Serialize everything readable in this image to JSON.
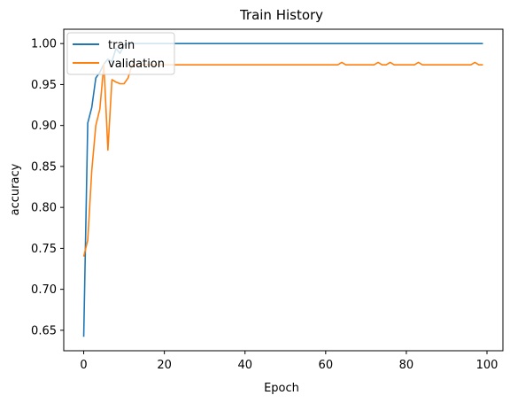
{
  "chart_data": {
    "type": "line",
    "title": "Train History",
    "xlabel": "Epoch",
    "ylabel": "accuracy",
    "xlim": [
      -4.95,
      103.95
    ],
    "ylim": [
      0.625,
      1.0175
    ],
    "xticks": [
      0,
      20,
      40,
      60,
      80,
      100
    ],
    "yticks": [
      0.65,
      0.7,
      0.75,
      0.8,
      0.85,
      0.9,
      0.95,
      1.0
    ],
    "xtick_labels": [
      "0",
      "20",
      "40",
      "60",
      "80",
      "100"
    ],
    "ytick_labels": [
      "0.65",
      "0.70",
      "0.75",
      "0.80",
      "0.85",
      "0.90",
      "0.95",
      "1.00"
    ],
    "grid": false,
    "legend_position": "upper-left",
    "series": [
      {
        "name": "train",
        "color": "#1f77b4",
        "points": [
          [
            0,
            0.642
          ],
          [
            1,
            0.903
          ],
          [
            2,
            0.922
          ],
          [
            3,
            0.958
          ],
          [
            4,
            0.965
          ],
          [
            5,
            0.975
          ],
          [
            6,
            0.981
          ],
          [
            7,
            0.978
          ],
          [
            8,
            0.994
          ],
          [
            9,
            0.988
          ],
          [
            10,
            0.998
          ],
          [
            11,
            1.0
          ],
          [
            99,
            1.0
          ]
        ]
      },
      {
        "name": "validation",
        "color": "#ff7f0e",
        "points": [
          [
            0,
            0.74
          ],
          [
            1,
            0.76
          ],
          [
            2,
            0.845
          ],
          [
            3,
            0.9
          ],
          [
            4,
            0.92
          ],
          [
            5,
            0.975
          ],
          [
            6,
            0.87
          ],
          [
            7,
            0.956
          ],
          [
            8,
            0.953
          ],
          [
            9,
            0.951
          ],
          [
            10,
            0.951
          ],
          [
            11,
            0.958
          ],
          [
            12,
            0.974
          ],
          [
            63,
            0.974
          ],
          [
            64,
            0.977
          ],
          [
            65,
            0.974
          ],
          [
            72,
            0.974
          ],
          [
            73,
            0.977
          ],
          [
            74,
            0.974
          ],
          [
            75,
            0.974
          ],
          [
            76,
            0.977
          ],
          [
            77,
            0.974
          ],
          [
            82,
            0.974
          ],
          [
            83,
            0.977
          ],
          [
            84,
            0.974
          ],
          [
            96,
            0.974
          ],
          [
            97,
            0.977
          ],
          [
            98,
            0.974
          ],
          [
            99,
            0.974
          ]
        ]
      }
    ]
  }
}
